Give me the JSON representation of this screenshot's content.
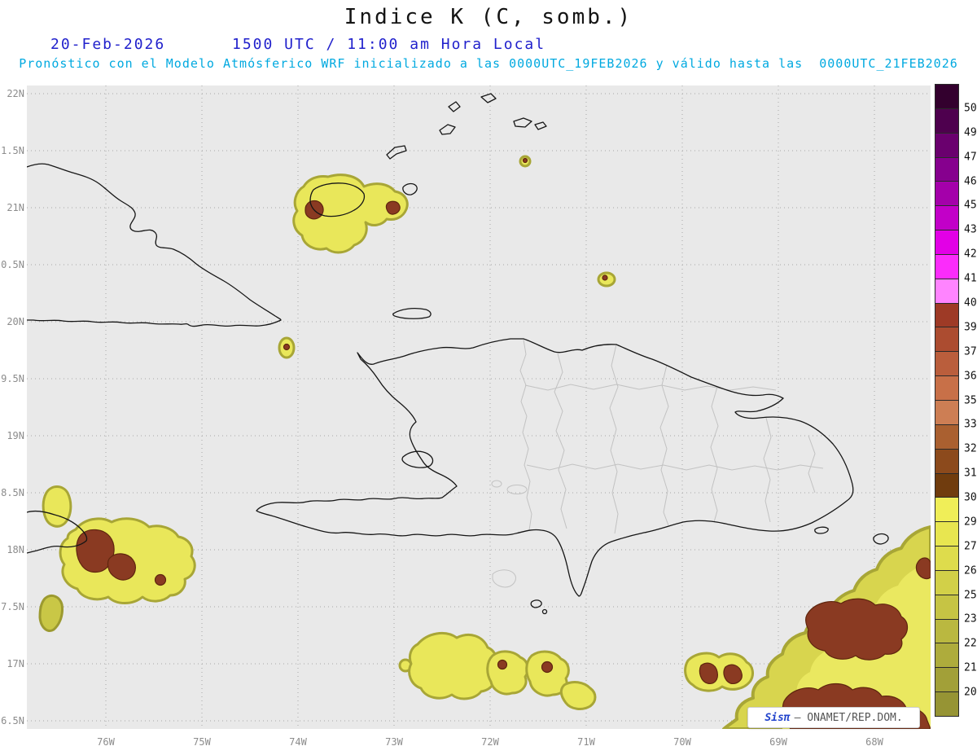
{
  "header": {
    "title": "Indice K (C, somb.)",
    "date": "20-Feb-2026",
    "time": "1500 UTC / 11:00 am Hora Local",
    "forecast_line": "Pronóstico con el Modelo Atmósferico WRF inicializado a las 0000UTC_19FEB2026 y válido hasta las  0000UTC_21FEB2026"
  },
  "axes": {
    "y_ticks": [
      "22N",
      "1.5N",
      "21N",
      "0.5N",
      "20N",
      "9.5N",
      "19N",
      "8.5N",
      "18N",
      "7.5N",
      "17N",
      "6.5N"
    ],
    "x_ticks": [
      "76W",
      "75W",
      "74W",
      "73W",
      "72W",
      "71W",
      "70W",
      "69W",
      "68W"
    ]
  },
  "colorbar": {
    "labels": [
      "50",
      "49.1",
      "47.8",
      "46.5",
      "45.2",
      "43.9",
      "42.6",
      "41.3",
      "40",
      "39.1",
      "37.8",
      "36.5",
      "35.2",
      "33.9",
      "32.6",
      "31.3",
      "30",
      "29.1",
      "27.8",
      "26.5",
      "25.2",
      "23.9",
      "22.6",
      "21.3",
      "20"
    ],
    "colors": [
      "#33002e",
      "#4e004e",
      "#6a006e",
      "#86008e",
      "#a400aa",
      "#c200c8",
      "#e200e6",
      "#fb2cfb",
      "#ff84ff",
      "#9e3a26",
      "#ac4c30",
      "#ba5e3c",
      "#c87048",
      "#cd7e54",
      "#aa6030",
      "#8c4a1c",
      "#703c0e",
      "#f0ee58",
      "#e8e650",
      "#dedc4c",
      "#d2d048",
      "#c6c444",
      "#bab840",
      "#aeac3c",
      "#a2a038",
      "#969434"
    ]
  },
  "watermark": {
    "brand": "Sisπ",
    "rest": "— ONAMET/REP.DOM."
  },
  "colors": {
    "map_background": "#e9e9e9",
    "contour_yellow": "#e9e75a",
    "contour_olive_edge": "#a8a636",
    "contour_red_core": "#8a3a22",
    "coastline": "#161616",
    "province_line": "#c2c2c2",
    "grid": "#a8a8a8",
    "date_blue": "#2121cc",
    "forecast_cyan": "#00a9e0"
  },
  "chart_data": {
    "type": "heatmap",
    "title": "Indice K (C, somb.)",
    "valid_time": "20-Feb-2026 1500 UTC / 11:00 am Hora Local",
    "model": "WRF inicializado 0000UTC_19FEB2026, válido hasta 0000UTC_21FEB2026",
    "x_ticks": [
      "76W",
      "75W",
      "74W",
      "73W",
      "72W",
      "71W",
      "70W",
      "69W",
      "68W"
    ],
    "y_ticks_full": [
      "22N",
      "21.5N",
      "21N",
      "20.5N",
      "20N",
      "19.5N",
      "19N",
      "18.5N",
      "18N",
      "17.5N",
      "17N",
      "16.5N"
    ],
    "colorbar_levels": [
      20,
      21.3,
      22.6,
      23.9,
      25.2,
      26.5,
      27.8,
      29.1,
      30,
      31.3,
      32.6,
      33.9,
      35.2,
      36.5,
      37.8,
      39.1,
      40,
      41.3,
      42.6,
      43.9,
      45.2,
      46.5,
      47.8,
      49.1,
      50
    ],
    "units": "C",
    "regions": [
      {
        "location": "Great Inagua / SE Bahamas (~73.6W, 21.0N)",
        "k_values": "20-30 band with two small cores >30"
      },
      {
        "location": "Windward Passage spot (~74.1W, 19.8N)",
        "k_values": "small 20-30 spot with core >30"
      },
      {
        "location": "Turks Bank spot (~71.6W, 21.4N)",
        "k_values": "tiny spot with core >30"
      },
      {
        "location": "North of Hispaniola spot (~70.9W, 20.4N)",
        "k_values": "tiny 20-30 spot with core >30"
      },
      {
        "location": "Jamaica and waters east (~76.8-75.1W, 17.5-18.4N)",
        "k_values": "broad 20-30 area with cores >30"
      },
      {
        "location": "Caribbean south of Hispaniola (~72.7-70.7W, 16.6-17.4N)",
        "k_values": "scattered 20-30 blobs, two cores >30"
      },
      {
        "location": "Southeast corner toward Mona Passage / E Caribbean (~69.8-67.5W, south of 18N)",
        "k_values": "large 20-30 area with large cores >30"
      },
      {
        "location": "Hispaniola interior and remaining area",
        "k_values": "< 20 (background)"
      }
    ]
  }
}
